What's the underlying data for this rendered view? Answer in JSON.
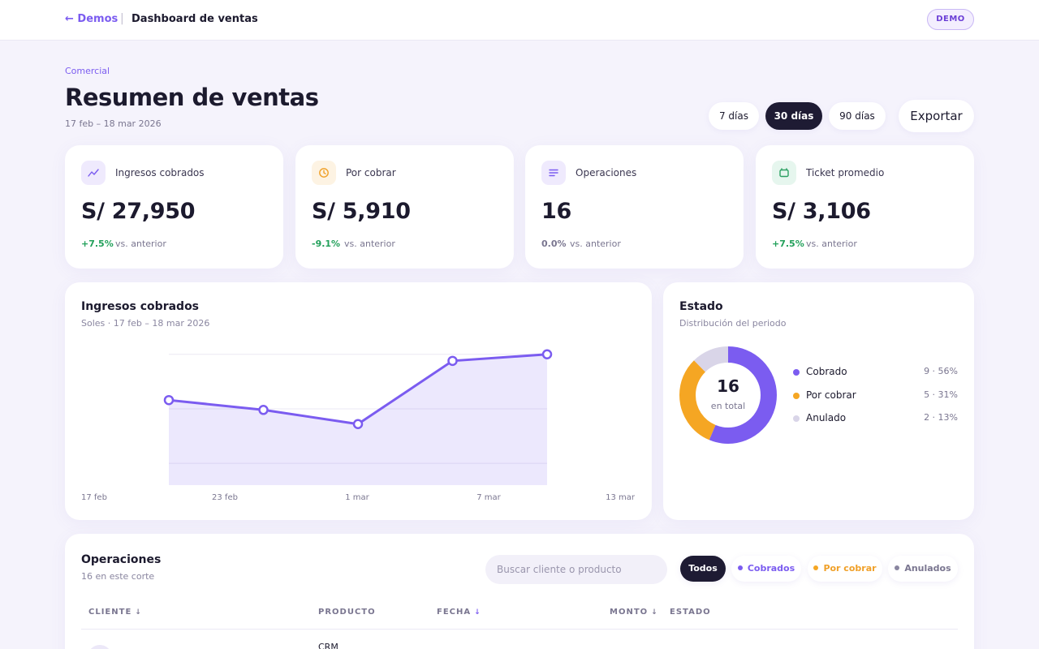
{
  "header": {
    "back_label": "← Demos",
    "separator": "|",
    "title": "Dashboard de ventas",
    "badge": "DEMO"
  },
  "page": {
    "eyebrow": "Comercial",
    "title": "Resumen de ventas",
    "date_range": "17 feb – 18 mar 2026"
  },
  "period_filters": [
    {
      "label": "7 días",
      "active": false
    },
    {
      "label": "30 días",
      "active": true
    },
    {
      "label": "90 días",
      "active": false
    }
  ],
  "export_label": "Exportar",
  "kpis": [
    {
      "label": "Ingresos cobrados",
      "value": "S/ 27,950",
      "delta": "+7.5%",
      "delta_color": "#22a05a",
      "vs": "vs. anterior",
      "icon": "trend-line-icon",
      "icon_bg": "#efeafd",
      "icon_color": "#7b5cf0"
    },
    {
      "label": "Por cobrar",
      "value": "S/ 5,910",
      "delta": "-9.1%",
      "delta_color": "#22a05a",
      "vs": "vs. anterior",
      "icon": "clock-icon",
      "icon_bg": "#fdf3e3",
      "icon_color": "#f0a028"
    },
    {
      "label": "Operaciones",
      "value": "16",
      "delta": "0.0%",
      "delta_color": "#7a7690",
      "vs": "vs. anterior",
      "icon": "list-icon",
      "icon_bg": "#efeafd",
      "icon_color": "#7b5cf0"
    },
    {
      "label": "Ticket promedio",
      "value": "S/ 3,106",
      "delta": "+7.5%",
      "delta_color": "#22a05a",
      "vs": "vs. anterior",
      "icon": "wallet-icon",
      "icon_bg": "#e6f6ee",
      "icon_color": "#2ca063"
    }
  ],
  "revenue_chart": {
    "title": "Ingresos cobrados",
    "subtitle": "Soles · 17 feb – 18 mar 2026"
  },
  "status_card": {
    "title": "Estado",
    "subtitle": "Distribución del periodo",
    "total": "16",
    "total_label": "en total",
    "items": [
      {
        "label": "Cobrado",
        "count": "9 · 56%",
        "color": "#7b5cf0"
      },
      {
        "label": "Por cobrar",
        "count": "5 · 31%",
        "color": "#f5a623"
      },
      {
        "label": "Anulado",
        "count": "2 · 13%",
        "color": "#d9d5e8"
      }
    ]
  },
  "chart_data": [
    {
      "type": "area",
      "x_tick_labels": [
        "17 feb",
        "23 feb",
        "1 mar",
        "7 mar",
        "13 mar"
      ],
      "series": [
        {
          "values": [
            0.58,
            0.49,
            0.36,
            0.94,
            1.0
          ]
        }
      ],
      "ylim": [
        -0.2,
        1.08
      ],
      "grid": true,
      "color": "#7b5cf0"
    },
    {
      "type": "pie",
      "categories": [
        "Cobrado",
        "Por cobrar",
        "Anulado"
      ],
      "values": [
        9,
        5,
        2
      ],
      "colors": [
        "#7b5cf0",
        "#f5a623",
        "#d9d5e8"
      ]
    }
  ],
  "operations": {
    "title": "Operaciones",
    "subtitle": "16 en este corte",
    "search_placeholder": "Buscar cliente o producto",
    "filters": [
      {
        "label": "Todos",
        "active": true,
        "dot": ""
      },
      {
        "label": "Cobrados",
        "active": false,
        "dot": "#7b5cf0",
        "color": "#7b5cf0"
      },
      {
        "label": "Por cobrar",
        "active": false,
        "dot": "#f5a623",
        "color": "#f0a028"
      },
      {
        "label": "Anulados",
        "active": false,
        "dot": "#8a86a0",
        "color": "#7a7690"
      }
    ],
    "columns": [
      {
        "label": "CLIENTE",
        "sort": "↓"
      },
      {
        "label": "PRODUCTO",
        "sort": ""
      },
      {
        "label": "FECHA",
        "sort": "↓"
      },
      {
        "label": "MONTO",
        "sort": "↓"
      },
      {
        "label": "ESTADO",
        "sort": ""
      }
    ],
    "first_row_product": "CRM"
  }
}
